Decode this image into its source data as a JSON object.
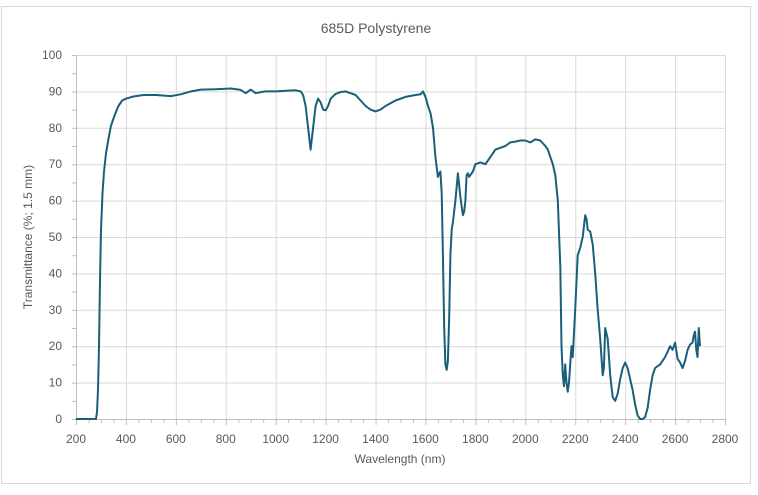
{
  "chart_data": {
    "type": "line",
    "title": "685D Polystyrene",
    "xlabel": "Wavelength (nm)",
    "ylabel": "Transmittance (%; 1.5 mm)",
    "xlim": [
      200,
      2800
    ],
    "ylim": [
      0,
      100
    ],
    "x_ticks": [
      200,
      400,
      600,
      800,
      1000,
      1200,
      1400,
      1600,
      1800,
      2000,
      2200,
      2400,
      2600,
      2800
    ],
    "y_ticks": [
      0,
      10,
      20,
      30,
      40,
      50,
      60,
      70,
      80,
      90,
      100
    ],
    "grid": true,
    "legend": "none",
    "series": [
      {
        "name": "685D Polystyrene",
        "color": "#1a5f7a",
        "x": [
          200,
          280,
          284,
          288,
          292,
          296,
          300,
          306,
          312,
          320,
          330,
          340,
          355,
          370,
          385,
          400,
          430,
          470,
          520,
          580,
          620,
          660,
          700,
          760,
          820,
          860,
          880,
          900,
          920,
          940,
          960,
          1000,
          1040,
          1080,
          1100,
          1110,
          1120,
          1130,
          1140,
          1150,
          1160,
          1170,
          1180,
          1190,
          1200,
          1210,
          1220,
          1240,
          1260,
          1280,
          1300,
          1320,
          1340,
          1360,
          1380,
          1400,
          1420,
          1440,
          1480,
          1520,
          1560,
          1580,
          1590,
          1600,
          1610,
          1620,
          1630,
          1640,
          1650,
          1655,
          1660,
          1665,
          1670,
          1675,
          1680,
          1685,
          1690,
          1695,
          1700,
          1705,
          1710,
          1720,
          1730,
          1740,
          1750,
          1755,
          1760,
          1765,
          1770,
          1775,
          1780,
          1790,
          1800,
          1820,
          1840,
          1860,
          1880,
          1900,
          1920,
          1940,
          1960,
          1980,
          2000,
          2020,
          2040,
          2060,
          2080,
          2090,
          2100,
          2110,
          2120,
          2130,
          2140,
          2145,
          2150,
          2155,
          2160,
          2165,
          2170,
          2175,
          2180,
          2185,
          2190,
          2200,
          2210,
          2220,
          2230,
          2240,
          2245,
          2250,
          2260,
          2270,
          2280,
          2290,
          2300,
          2310,
          2315,
          2320,
          2330,
          2340,
          2350,
          2360,
          2370,
          2380,
          2390,
          2400,
          2410,
          2420,
          2430,
          2440,
          2450,
          2460,
          2470,
          2480,
          2490,
          2500,
          2510,
          2520,
          2540,
          2560,
          2570,
          2580,
          2590,
          2600,
          2610,
          2620,
          2630,
          2640,
          2650,
          2660,
          2670,
          2675,
          2680,
          2685,
          2690,
          2695,
          2700
        ],
        "y": [
          0,
          0,
          2,
          8,
          20,
          38,
          52,
          62,
          68,
          73,
          77,
          80.5,
          83.5,
          86,
          87.5,
          88,
          88.6,
          89,
          89,
          88.7,
          89.2,
          90,
          90.5,
          90.6,
          90.8,
          90.4,
          89.5,
          90.5,
          89.5,
          89.8,
          90,
          90,
          90.2,
          90.3,
          90,
          89,
          86,
          80,
          74,
          80,
          86,
          88,
          87,
          85,
          84.8,
          86,
          88,
          89.3,
          89.8,
          90,
          89.5,
          89,
          87.5,
          86,
          85,
          84.5,
          85,
          86,
          87.5,
          88.5,
          89,
          89.2,
          90,
          88.5,
          86,
          84,
          80,
          72,
          66.5,
          67.5,
          68,
          62,
          45,
          25,
          15,
          13.5,
          16,
          28,
          45,
          52,
          54,
          60,
          67.5,
          61,
          56,
          57,
          60,
          67,
          67.5,
          66.5,
          67,
          68,
          70,
          70.5,
          70,
          72,
          74,
          74.5,
          75,
          76,
          76.2,
          76.5,
          76.5,
          76,
          76.8,
          76.5,
          75,
          74,
          72,
          70,
          67,
          60,
          42,
          20,
          12,
          9,
          15,
          10,
          7.5,
          10,
          15,
          20,
          17,
          30,
          45,
          47,
          50,
          56,
          55,
          52,
          51.5,
          48,
          40,
          30,
          22,
          12,
          14,
          25,
          22,
          12,
          6,
          5,
          7,
          11,
          14,
          15.5,
          14,
          11,
          8,
          4,
          1,
          0,
          0,
          0.5,
          3,
          8,
          12,
          14,
          15,
          17,
          18.5,
          20,
          19,
          21,
          16.5,
          15.5,
          14,
          16,
          19,
          20.5,
          21,
          23,
          24,
          19,
          17,
          25,
          20
        ]
      }
    ]
  }
}
